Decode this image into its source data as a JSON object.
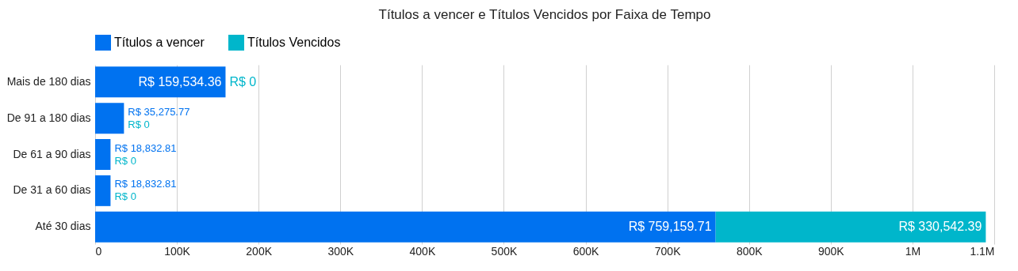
{
  "chart_data": {
    "type": "bar",
    "orientation": "horizontal",
    "stacked": true,
    "title": "Títulos a vencer e Títulos Vencidos por Faixa de Tempo",
    "categories": [
      "Mais de 180 dias",
      "De 91 a 180 dias",
      "De 61 a 90 dias",
      "De 31 a 60 dias",
      "Até 30 dias"
    ],
    "series": [
      {
        "name": "Títulos a vencer",
        "color": "#0072f0",
        "values": [
          159534.36,
          35275.77,
          18832.81,
          18832.81,
          759159.71
        ],
        "value_labels": [
          "R$ 159,534.36",
          "R$ 35,275.77",
          "R$ 18,832.81",
          "R$ 18,832.81",
          "R$ 759,159.71"
        ]
      },
      {
        "name": "Títulos Vencidos",
        "color": "#00b6cb",
        "values": [
          0,
          0,
          0,
          0,
          330542.39
        ],
        "value_labels": [
          "R$ 0",
          "R$ 0",
          "R$ 0",
          "R$ 0",
          "R$ 330,542.39"
        ]
      }
    ],
    "xlim": [
      0,
      1100000
    ],
    "xticks": [
      0,
      {
        "value": 100000,
        "label": "100K"
      },
      {
        "value": 200000,
        "label": "200K"
      },
      {
        "value": 300000,
        "label": "300K"
      },
      {
        "value": 400000,
        "label": "400K"
      },
      {
        "value": 500000,
        "label": "500K"
      },
      {
        "value": 600000,
        "label": "600K"
      },
      {
        "value": 700000,
        "label": "700K"
      },
      {
        "value": 800000,
        "label": "800K"
      },
      {
        "value": 900000,
        "label": "900K"
      },
      {
        "value": 1000000,
        "label": "1M"
      },
      {
        "value": 1100000,
        "label": "1.1M"
      }
    ],
    "grid": "x",
    "legend": "top left"
  }
}
